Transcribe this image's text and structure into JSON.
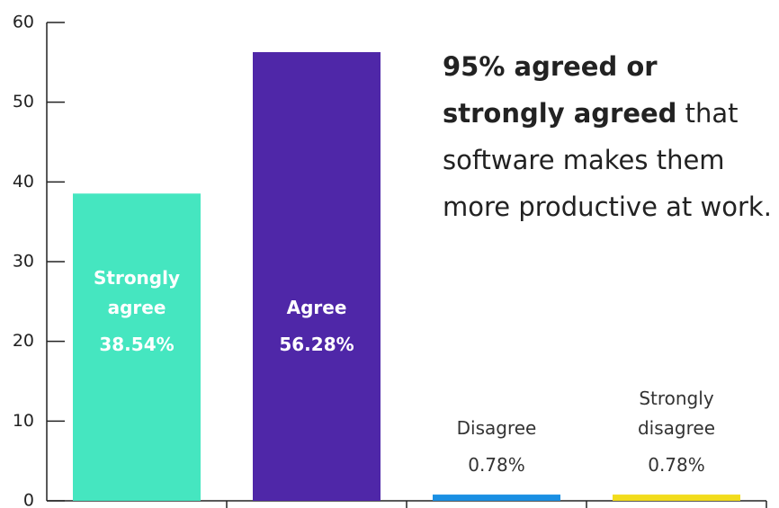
{
  "chart_data": {
    "type": "bar",
    "categories": [
      "Strongly agree",
      "Agree",
      "Disagree",
      "Strongly disagree"
    ],
    "values": [
      38.54,
      56.28,
      0.78,
      0.78
    ],
    "value_labels": [
      "38.54%",
      "56.28%",
      "0.78%",
      "0.78%"
    ],
    "colors": [
      "#45e6c0",
      "#4f27a8",
      "#1a8fe3",
      "#f2dc1c"
    ],
    "ylim": [
      0,
      60
    ],
    "yticks": [
      0,
      10,
      20,
      30,
      40,
      50,
      60
    ],
    "annotation": {
      "bold": "95% agreed or strongly agreed",
      "text": "that software makes them more productive at work."
    }
  }
}
